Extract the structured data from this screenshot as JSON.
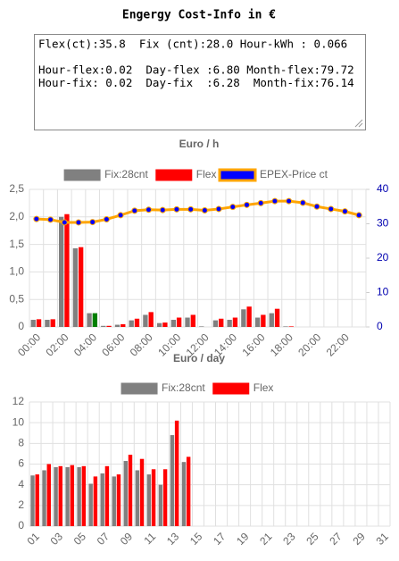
{
  "header": {
    "title": "Engergy Cost-Info in €"
  },
  "info": {
    "lines": [
      "Flex(ct):35.8  Fix (cnt):28.0 Hour-kWh : 0.066",
      "",
      "Hour-flex:0.02  Day-flex :6.80 Month-flex:79.72",
      "Hour-fix: 0.02  Day-fix  :6.28  Month-fix:76.14"
    ]
  },
  "chart_data": [
    {
      "type": "bar",
      "title": "Euro / h",
      "categories": [
        "00:00",
        null,
        "02:00",
        null,
        "04:00",
        null,
        "06:00",
        null,
        "08:00",
        null,
        "10:00",
        null,
        "12:00",
        null,
        "14:00",
        null,
        "16:00",
        null,
        "18:00",
        null,
        "20:00",
        null,
        "22:00",
        null
      ],
      "series": [
        {
          "name": "Fix:28cnt",
          "color": "#808080",
          "values": [
            0.13,
            0.13,
            2.0,
            1.43,
            0.25,
            0.02,
            0.04,
            0.12,
            0.22,
            0.07,
            0.13,
            0.17,
            0.01,
            0.12,
            0.13,
            0.32,
            0.17,
            0.25,
            0.01,
            0,
            0,
            0,
            0,
            0
          ]
        },
        {
          "name": "Flex",
          "color": "#ff0000",
          "colors": [
            "#ff0000",
            "#ff0000",
            "#ff0000",
            "#ff0000",
            "#008000",
            "#ff0000",
            "#ff0000",
            "#ff0000",
            "#ff0000",
            "#ff0000",
            "#ff0000",
            "#ff0000",
            "#ff0000",
            "#ff0000",
            "#ff0000",
            "#ff0000",
            "#ff0000",
            "#ff0000",
            "#ff0000",
            "#ff0000",
            "#ff0000",
            "#ff0000",
            "#ff0000",
            "#ff0000"
          ],
          "values": [
            0.14,
            0.14,
            2.05,
            1.45,
            0.25,
            0.02,
            0.05,
            0.15,
            0.27,
            0.08,
            0.17,
            0.22,
            0.0,
            0.15,
            0.17,
            0.37,
            0.22,
            0.33,
            0.01,
            0,
            0,
            0,
            0,
            0
          ]
        },
        {
          "name": "EPEX-Price ct",
          "type": "line",
          "axis": "y2",
          "color": "#0000ff",
          "line_color": "#ffa500",
          "values": [
            31.4,
            31.2,
            30.4,
            30.4,
            30.5,
            31.3,
            32.5,
            33.8,
            34.1,
            34.0,
            34.2,
            34.2,
            33.9,
            34.3,
            34.9,
            35.5,
            36.0,
            36.6,
            36.6,
            36.1,
            35.0,
            34.3,
            33.6,
            32.5
          ]
        }
      ],
      "ylim": [
        0,
        2.5
      ],
      "yticks": [
        0,
        {
          "value": 0.5,
          "label": "0,5"
        },
        {
          "value": 1,
          "label": "1,0"
        },
        {
          "value": 1.5,
          "label": "1,5"
        },
        {
          "value": 2,
          "label": "2,0"
        },
        {
          "value": 2.5,
          "label": "2,5"
        }
      ],
      "y2lim": [
        0,
        40
      ],
      "y2ticks": [
        0,
        10,
        20,
        30,
        40
      ],
      "y2color": "#0000b0",
      "grid": true
    },
    {
      "type": "bar",
      "title": "Euro / day",
      "categories": [
        "01",
        null,
        "03",
        null,
        "05",
        null,
        "07",
        null,
        "09",
        null,
        "11",
        null,
        "13",
        null,
        "15",
        null,
        "17",
        null,
        "19",
        null,
        "21",
        null,
        "23",
        null,
        "25",
        null,
        "27",
        null,
        "29",
        null,
        "31"
      ],
      "series": [
        {
          "name": "Fix:28cnt",
          "color": "#808080",
          "values": [
            4.9,
            5.4,
            5.7,
            5.7,
            5.7,
            4.1,
            5.1,
            4.8,
            6.3,
            5.4,
            5.0,
            4.0,
            8.8,
            6.2,
            null,
            null,
            null,
            null,
            null,
            null,
            null,
            null,
            null,
            null,
            null,
            null,
            null,
            null,
            null,
            null,
            null
          ]
        },
        {
          "name": "Flex",
          "color": "#ff0000",
          "values": [
            5.0,
            6.0,
            5.8,
            5.9,
            5.8,
            4.8,
            5.8,
            5.0,
            6.9,
            6.5,
            5.5,
            5.5,
            10.2,
            6.7,
            null,
            null,
            null,
            null,
            null,
            null,
            null,
            null,
            null,
            null,
            null,
            null,
            null,
            null,
            null,
            null,
            null
          ]
        }
      ],
      "ylim": [
        0,
        12
      ],
      "yticks": [
        0,
        2,
        4,
        6,
        8,
        10,
        12
      ],
      "grid": true
    }
  ]
}
